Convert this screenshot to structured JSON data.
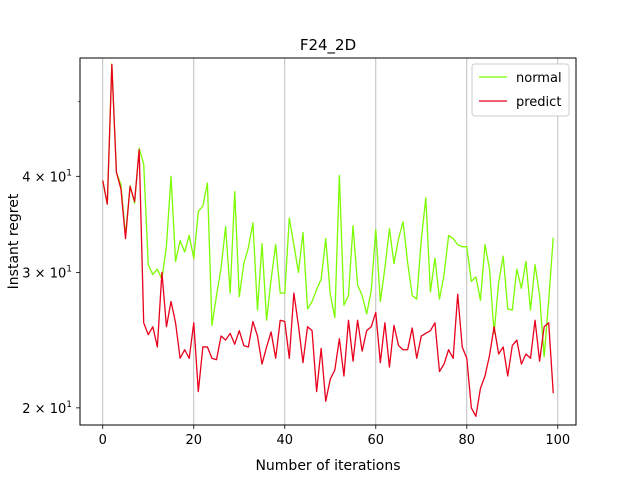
{
  "chart_data": {
    "type": "line",
    "title": "F24_2D",
    "xlabel": "Number of iterations",
    "ylabel": "Instant regret",
    "yscale": "log",
    "xlim": [
      -5,
      104
    ],
    "ylim": [
      19,
      57
    ],
    "x_ticks": [
      0,
      20,
      40,
      60,
      80,
      100
    ],
    "y_ticks": [
      {
        "value": 20,
        "label": "2 × 10^1"
      },
      {
        "value": 30,
        "label": "3 × 10^1"
      },
      {
        "value": 40,
        "label": "4 × 10^1"
      }
    ],
    "grid": "vertical",
    "legend": "upper right",
    "series": [
      {
        "name": "normal",
        "color": "#7cfc00",
        "values": [
          39.5,
          36.8,
          56.0,
          40.5,
          39.0,
          33.5,
          38.9,
          36.9,
          43.5,
          41.5,
          30.7,
          29.8,
          30.3,
          29.4,
          32.5,
          40.0,
          31.0,
          33.0,
          31.9,
          33.5,
          31.3,
          36.0,
          36.6,
          39.2,
          25.6,
          28.0,
          30.4,
          34.4,
          28.2,
          38.2,
          27.9,
          30.8,
          32.3,
          34.8,
          26.8,
          32.7,
          26.0,
          29.4,
          32.6,
          28.2,
          28.2,
          35.3,
          32.6,
          30.0,
          33.8,
          26.9,
          27.5,
          28.5,
          29.4,
          33.2,
          28.1,
          26.2,
          40.1,
          27.2,
          28.0,
          34.5,
          28.9,
          28.0,
          26.5,
          28.4,
          34.1,
          27.5,
          30.4,
          34.2,
          30.8,
          33.2,
          34.9,
          30.9,
          28.0,
          27.7,
          33.1,
          37.5,
          28.3,
          31.3,
          27.7,
          29.8,
          33.5,
          33.2,
          32.6,
          32.4,
          32.4,
          29.2,
          29.6,
          27.6,
          32.6,
          30.3,
          25.0,
          29.1,
          31.5,
          26.9,
          26.8,
          30.3,
          28.6,
          31.0,
          26.8,
          30.7,
          28.0,
          23.3,
          27.6,
          33.3
        ]
      },
      {
        "name": "predict",
        "color": "#e8001c",
        "values": [
          39.5,
          36.8,
          55.9,
          40.5,
          38.5,
          33.2,
          38.8,
          37.1,
          43.3,
          25.8,
          24.9,
          25.5,
          24.0,
          30.0,
          25.5,
          27.5,
          25.8,
          23.2,
          23.8,
          23.2,
          25.8,
          21.0,
          24.0,
          24.0,
          23.2,
          23.1,
          24.8,
          24.5,
          25.0,
          24.2,
          25.2,
          24.1,
          24.0,
          25.9,
          24.8,
          22.8,
          24.0,
          25.1,
          23.2,
          26.0,
          25.9,
          23.2,
          28.2,
          25.6,
          22.9,
          25.5,
          25.2,
          21.0,
          23.9,
          20.4,
          21.8,
          22.4,
          24.6,
          22.0,
          26.0,
          23.0,
          26.0,
          23.7,
          25.2,
          25.5,
          26.6,
          22.9,
          25.8,
          22.6,
          25.6,
          24.1,
          23.8,
          23.8,
          25.4,
          23.2,
          24.8,
          25.0,
          25.2,
          25.8,
          22.3,
          22.8,
          23.8,
          23.2,
          28.1,
          24.0,
          23.2,
          20.0,
          19.5,
          21.2,
          22.0,
          23.4,
          25.5,
          23.5,
          24.0,
          22.0,
          24.1,
          24.5,
          22.8,
          23.5,
          23.2,
          26.0,
          23.0,
          25.5,
          25.8,
          20.9
        ]
      }
    ]
  }
}
